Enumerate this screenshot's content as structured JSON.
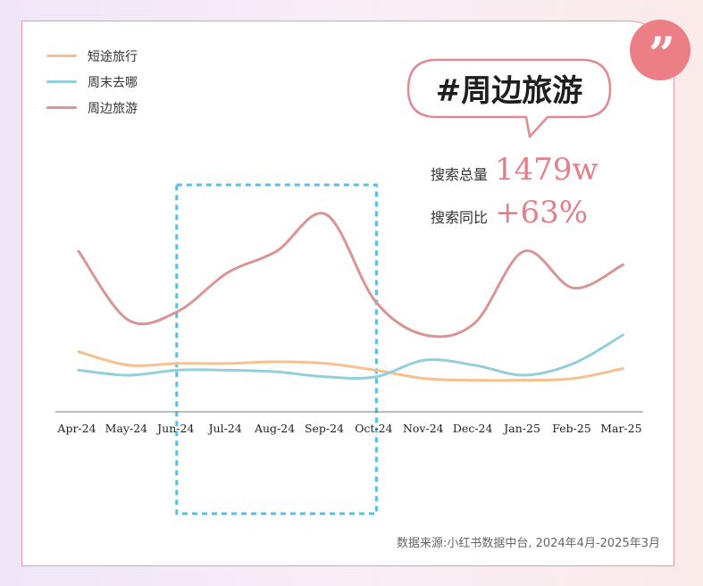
{
  "badge": {
    "icon": "quote-icon",
    "glyph": "”",
    "color": "#ec7f86"
  },
  "hashtag": "#周边旅游",
  "stats": [
    {
      "label": "搜索总量",
      "value": "1479w"
    },
    {
      "label": "搜索同比",
      "value": "+63%"
    }
  ],
  "source": "数据来源:小红书数据中台, 2024年4月-2025年3月",
  "chart_data": {
    "type": "line",
    "categories": [
      "Apr-24",
      "May-24",
      "Jun-24",
      "Jul-24",
      "Aug-24",
      "Sep-24",
      "Oct-24",
      "Nov-24",
      "Dec-24",
      "Jan-25",
      "Feb-25",
      "Mar-25"
    ],
    "series": [
      {
        "name": "短途旅行",
        "color": "#f6c08f",
        "values": [
          30,
          22,
          23,
          23,
          24,
          23,
          19,
          14,
          13,
          13,
          14,
          20
        ]
      },
      {
        "name": "周末去哪",
        "color": "#93cfdb",
        "values": [
          19,
          16,
          19,
          19,
          18,
          15,
          15,
          25,
          22,
          16,
          23,
          40
        ]
      },
      {
        "name": "周边旅游",
        "color": "#d99595",
        "values": [
          90,
          49,
          54,
          77,
          90,
          112,
          60,
          40,
          47,
          90,
          68,
          82
        ]
      }
    ],
    "highlight_range": [
      "Jun-24",
      "Oct-24"
    ],
    "ylim": [
      0,
      120
    ],
    "grid": false,
    "legend": "top-left"
  }
}
